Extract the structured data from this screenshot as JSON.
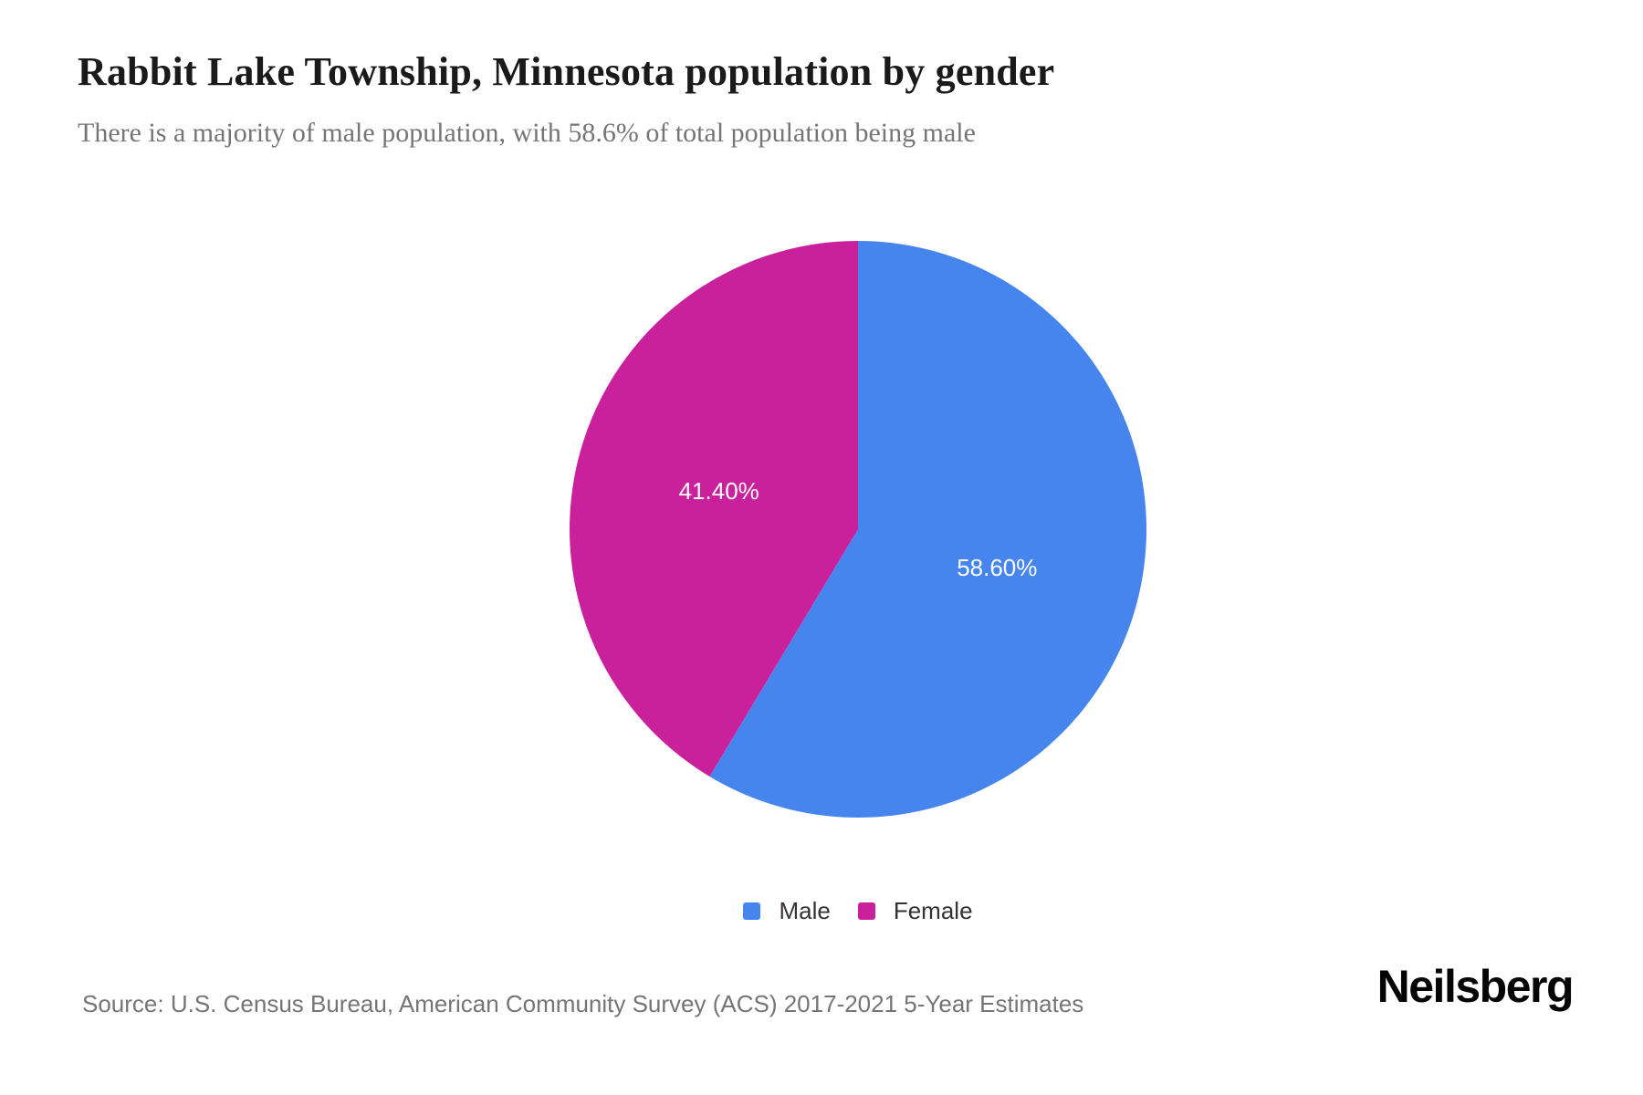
{
  "header": {
    "title": "Rabbit Lake Township, Minnesota population by gender",
    "subtitle": "There is a majority of male population, with 58.6% of total population being male"
  },
  "chart_data": {
    "type": "pie",
    "title": "Rabbit Lake Township, Minnesota population by gender",
    "subtitle": "There is a majority of male population, with 58.6% of total population being male",
    "categories": [
      "Male",
      "Female"
    ],
    "values": [
      58.6,
      41.4
    ],
    "slices": [
      {
        "label": "Male",
        "value": 58.6,
        "display_label": "58.60%",
        "color": "#4685EE"
      },
      {
        "label": "Female",
        "value": 41.4,
        "display_label": "41.40%",
        "color": "#C9219C"
      }
    ],
    "start_angle_deg": 0,
    "direction": "clockwise",
    "slice_label_color": "#ffffff",
    "legend_position": "bottom",
    "legend_entries": [
      "Male",
      "Female"
    ]
  },
  "footer": {
    "source": "Source: U.S. Census Bureau, American Community Survey (ACS) 2017-2021 5-Year Estimates",
    "brand": "Neilsberg"
  },
  "colors": {
    "male": "#4685EE",
    "female": "#C9219C",
    "title_text": "#1a1a1a",
    "subtitle_text": "#757575",
    "source_text": "#757575",
    "legend_text": "#333333",
    "brand_text": "#050505"
  }
}
